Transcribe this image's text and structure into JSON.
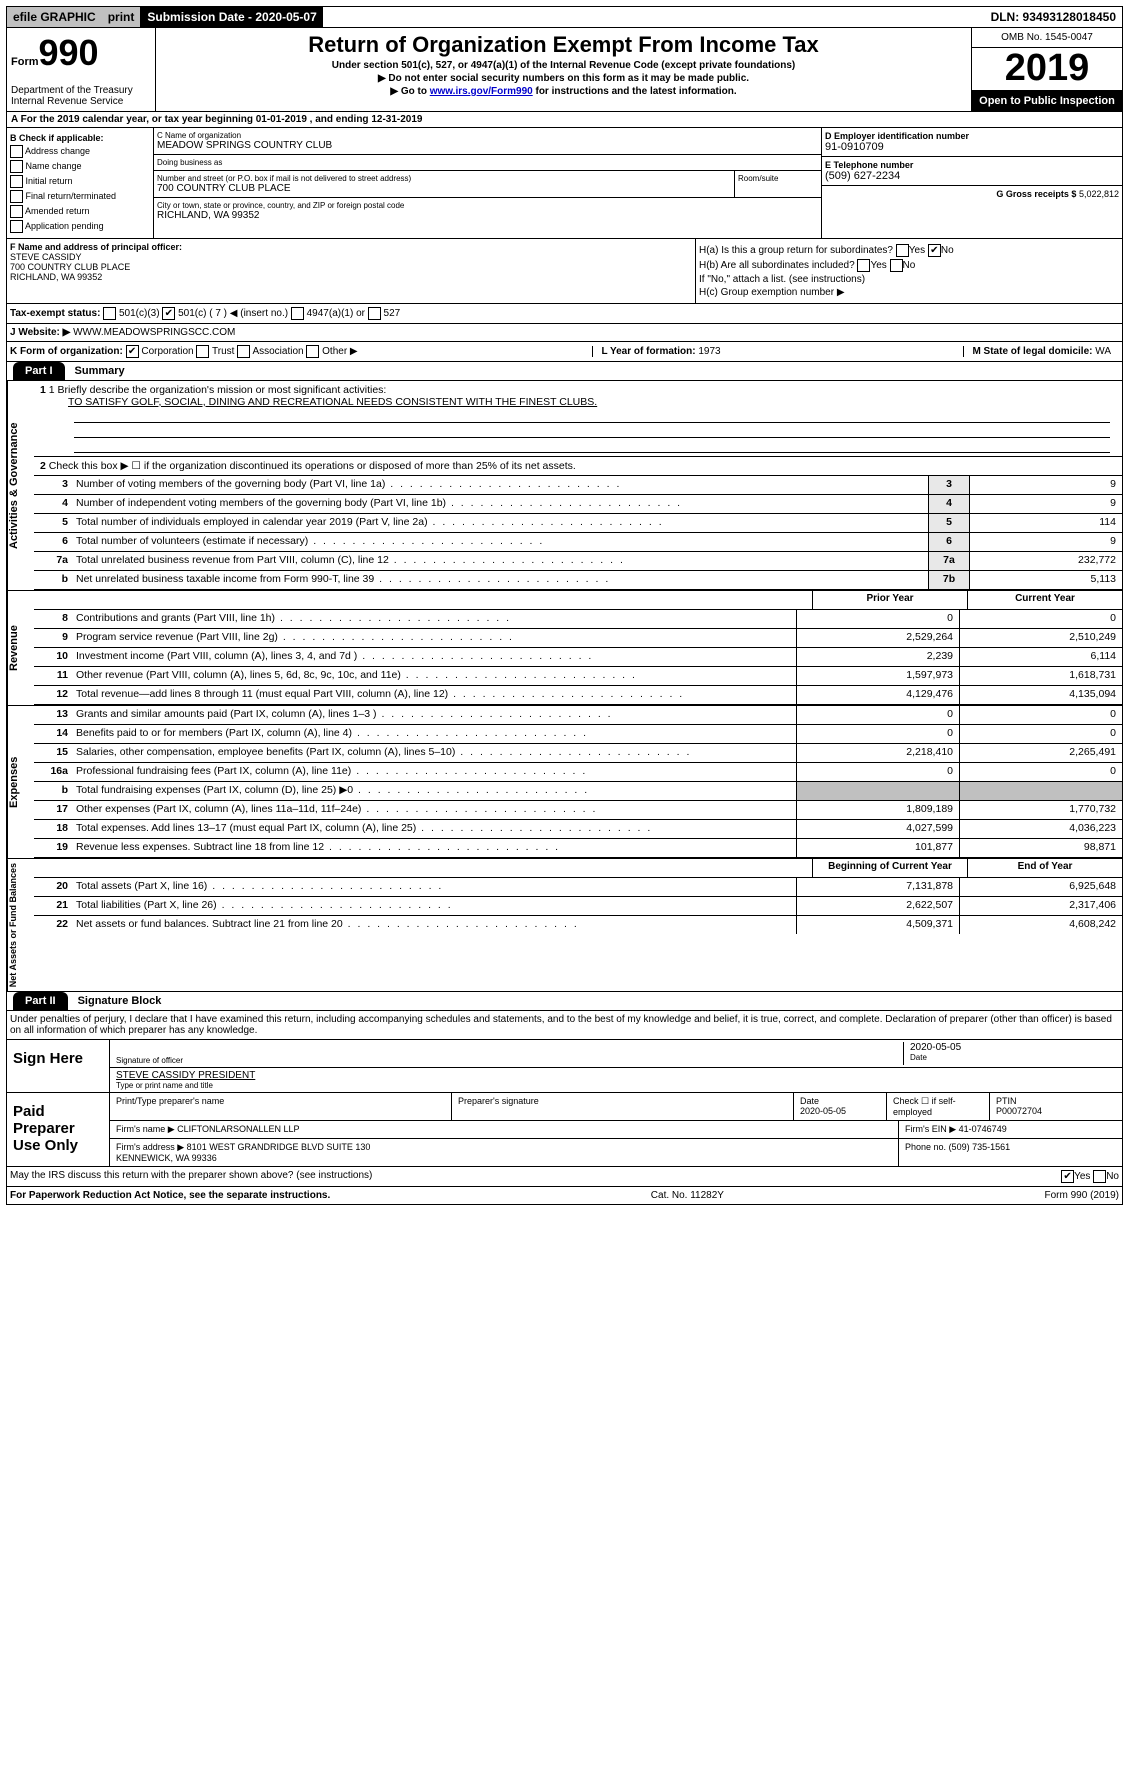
{
  "top_bar": {
    "efile": "efile GRAPHIC",
    "print": "print",
    "sub_date_label": "Submission Date - 2020-05-07",
    "dln": "DLN: 93493128018450"
  },
  "header": {
    "form": "Form",
    "form_num": "990",
    "title": "Return of Organization Exempt From Income Tax",
    "subtitle": "Under section 501(c), 527, or 4947(a)(1) of the Internal Revenue Code (except private foundations)",
    "note1": "▶ Do not enter social security numbers on this form as it may be made public.",
    "note2_pre": "▶ Go to ",
    "note2_link": "www.irs.gov/Form990",
    "note2_post": " for instructions and the latest information.",
    "dept": "Department of the Treasury Internal Revenue Service",
    "omb": "OMB No. 1545-0047",
    "year": "2019",
    "open": "Open to Public Inspection"
  },
  "row_a": "A For the 2019 calendar year, or tax year beginning 01-01-2019    , and ending 12-31-2019",
  "col_b": {
    "title": "B Check if applicable:",
    "items": [
      "Address change",
      "Name change",
      "Initial return",
      "Final return/terminated",
      "Amended return",
      "Application pending"
    ]
  },
  "col_c": {
    "name_label": "C Name of organization",
    "name": "MEADOW SPRINGS COUNTRY CLUB",
    "dba_label": "Doing business as",
    "addr_label": "Number and street (or P.O. box if mail is not delivered to street address)",
    "addr": "700 COUNTRY CLUB PLACE",
    "room_label": "Room/suite",
    "city_label": "City or town, state or province, country, and ZIP or foreign postal code",
    "city": "RICHLAND, WA  99352"
  },
  "col_d": {
    "ein_label": "D Employer identification number",
    "ein": "91-0910709",
    "tel_label": "E Telephone number",
    "tel": "(509) 627-2234",
    "gross_label": "G Gross receipts $",
    "gross": "5,022,812"
  },
  "row_f": {
    "label": "F Name and address of principal officer:",
    "name": "STEVE CASSIDY",
    "addr1": "700 COUNTRY CLUB PLACE",
    "addr2": "RICHLAND, WA  99352",
    "ha": "H(a) Is this a group return for subordinates?",
    "ha_no": "No",
    "ha_yes": "Yes",
    "hb": "H(b) Are all subordinates included?",
    "hb_yes": "Yes",
    "hb_no": "No",
    "hb_note": "If \"No,\" attach a list. (see instructions)",
    "hc": "H(c) Group exemption number ▶"
  },
  "row_i": {
    "label": "Tax-exempt status:",
    "opt1": "501(c)(3)",
    "opt2_pre": "501(c) ( 7 ) ◀ (insert no.)",
    "opt3": "4947(a)(1) or",
    "opt4": "527"
  },
  "row_j": {
    "label": "J Website: ▶",
    "value": "WWW.MEADOWSPRINGSCC.COM"
  },
  "row_k": {
    "label": "K Form of organization:",
    "corp": "Corporation",
    "trust": "Trust",
    "assoc": "Association",
    "other": "Other ▶",
    "year_label": "L Year of formation:",
    "year": "1973",
    "state_label": "M State of legal domicile:",
    "state": "WA"
  },
  "part1": {
    "tab": "Part I",
    "title": "Summary"
  },
  "governance": {
    "side_label": "Activities & Governance",
    "line1_label": "1 Briefly describe the organization's mission or most significant activities:",
    "line1_text": "TO SATISFY GOLF, SOCIAL, DINING AND RECREATIONAL NEEDS CONSISTENT WITH THE FINEST CLUBS.",
    "line2": "Check this box ▶ ☐ if the organization discontinued its operations or disposed of more than 25% of its net assets.",
    "rows": [
      {
        "num": "3",
        "desc": "Number of voting members of the governing body (Part VI, line 1a)",
        "cell": "3",
        "val": "9"
      },
      {
        "num": "4",
        "desc": "Number of independent voting members of the governing body (Part VI, line 1b)",
        "cell": "4",
        "val": "9"
      },
      {
        "num": "5",
        "desc": "Total number of individuals employed in calendar year 2019 (Part V, line 2a)",
        "cell": "5",
        "val": "114"
      },
      {
        "num": "6",
        "desc": "Total number of volunteers (estimate if necessary)",
        "cell": "6",
        "val": "9"
      },
      {
        "num": "7a",
        "desc": "Total unrelated business revenue from Part VIII, column (C), line 12",
        "cell": "7a",
        "val": "232,772"
      },
      {
        "num": "b",
        "desc": "Net unrelated business taxable income from Form 990-T, line 39",
        "cell": "7b",
        "val": "5,113"
      }
    ]
  },
  "two_col_hdr": {
    "prior": "Prior Year",
    "current": "Current Year"
  },
  "revenue": {
    "side_label": "Revenue",
    "rows": [
      {
        "num": "8",
        "desc": "Contributions and grants (Part VIII, line 1h)",
        "prior": "0",
        "curr": "0"
      },
      {
        "num": "9",
        "desc": "Program service revenue (Part VIII, line 2g)",
        "prior": "2,529,264",
        "curr": "2,510,249"
      },
      {
        "num": "10",
        "desc": "Investment income (Part VIII, column (A), lines 3, 4, and 7d )",
        "prior": "2,239",
        "curr": "6,114"
      },
      {
        "num": "11",
        "desc": "Other revenue (Part VIII, column (A), lines 5, 6d, 8c, 9c, 10c, and 11e)",
        "prior": "1,597,973",
        "curr": "1,618,731"
      },
      {
        "num": "12",
        "desc": "Total revenue—add lines 8 through 11 (must equal Part VIII, column (A), line 12)",
        "prior": "4,129,476",
        "curr": "4,135,094"
      }
    ]
  },
  "expenses": {
    "side_label": "Expenses",
    "rows": [
      {
        "num": "13",
        "desc": "Grants and similar amounts paid (Part IX, column (A), lines 1–3 )",
        "prior": "0",
        "curr": "0"
      },
      {
        "num": "14",
        "desc": "Benefits paid to or for members (Part IX, column (A), line 4)",
        "prior": "0",
        "curr": "0"
      },
      {
        "num": "15",
        "desc": "Salaries, other compensation, employee benefits (Part IX, column (A), lines 5–10)",
        "prior": "2,218,410",
        "curr": "2,265,491"
      },
      {
        "num": "16a",
        "desc": "Professional fundraising fees (Part IX, column (A), line 11e)",
        "prior": "0",
        "curr": "0"
      },
      {
        "num": "b",
        "desc": "Total fundraising expenses (Part IX, column (D), line 25) ▶0",
        "prior": "",
        "curr": ""
      },
      {
        "num": "17",
        "desc": "Other expenses (Part IX, column (A), lines 11a–11d, 11f–24e)",
        "prior": "1,809,189",
        "curr": "1,770,732"
      },
      {
        "num": "18",
        "desc": "Total expenses. Add lines 13–17 (must equal Part IX, column (A), line 25)",
        "prior": "4,027,599",
        "curr": "4,036,223"
      },
      {
        "num": "19",
        "desc": "Revenue less expenses. Subtract line 18 from line 12",
        "prior": "101,877",
        "curr": "98,871"
      }
    ]
  },
  "netassets_hdr": {
    "beg": "Beginning of Current Year",
    "end": "End of Year"
  },
  "netassets": {
    "side_label": "Net Assets or Fund Balances",
    "rows": [
      {
        "num": "20",
        "desc": "Total assets (Part X, line 16)",
        "prior": "7,131,878",
        "curr": "6,925,648"
      },
      {
        "num": "21",
        "desc": "Total liabilities (Part X, line 26)",
        "prior": "2,622,507",
        "curr": "2,317,406"
      },
      {
        "num": "22",
        "desc": "Net assets or fund balances. Subtract line 21 from line 20",
        "prior": "4,509,371",
        "curr": "4,608,242"
      }
    ]
  },
  "part2": {
    "tab": "Part II",
    "title": "Signature Block"
  },
  "penalties": "Under penalties of perjury, I declare that I have examined this return, including accompanying schedules and statements, and to the best of my knowledge and belief, it is true, correct, and complete. Declaration of preparer (other than officer) is based on all information of which preparer has any knowledge.",
  "sign": {
    "left": "Sign Here",
    "sig_officer": "Signature of officer",
    "date": "2020-05-05",
    "date_label": "Date",
    "printed": "STEVE CASSIDY PRESIDENT",
    "printed_label": "Type or print name and title"
  },
  "preparer": {
    "left": "Paid Preparer Use Only",
    "name_label": "Print/Type preparer's name",
    "sig_label": "Preparer's signature",
    "date_label": "Date",
    "date": "2020-05-05",
    "check_label": "Check ☐ if self-employed",
    "ptin_label": "PTIN",
    "ptin": "P00072704",
    "firm_label": "Firm's name    ▶",
    "firm": "CLIFTONLARSONALLEN LLP",
    "ein_label": "Firm's EIN ▶",
    "ein": "41-0746749",
    "addr_label": "Firm's address ▶",
    "addr1": "8101 WEST GRANDRIDGE BLVD SUITE 130",
    "addr2": "KENNEWICK, WA  99336",
    "phone_label": "Phone no.",
    "phone": "(509) 735-1561"
  },
  "discuss": {
    "text": "May the IRS discuss this return with the preparer shown above? (see instructions)",
    "yes": "Yes",
    "no": "No"
  },
  "footer": {
    "pra": "For Paperwork Reduction Act Notice, see the separate instructions.",
    "cat": "Cat. No. 11282Y",
    "form": "Form 990 (2019)"
  }
}
